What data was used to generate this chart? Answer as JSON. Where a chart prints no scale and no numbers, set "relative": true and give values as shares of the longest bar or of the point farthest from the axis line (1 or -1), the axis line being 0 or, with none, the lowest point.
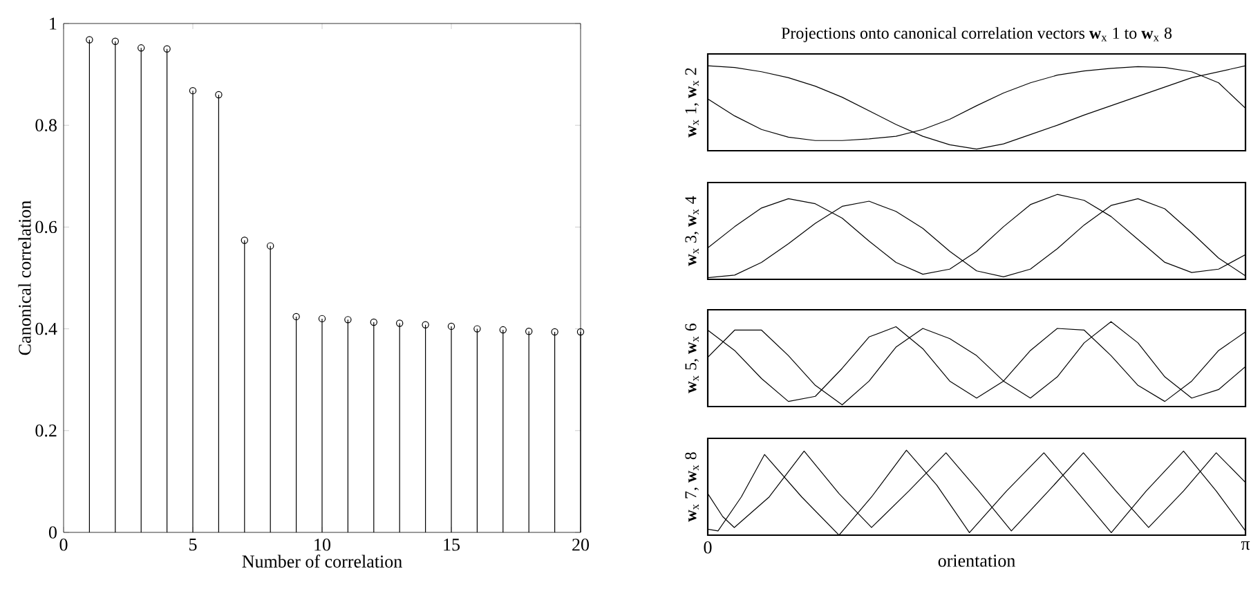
{
  "chart_data": [
    {
      "type": "lollipop",
      "xlabel": "Number of correlation",
      "ylabel": "Canonical correlation",
      "x": [
        1,
        2,
        3,
        4,
        5,
        6,
        7,
        8,
        9,
        10,
        11,
        12,
        13,
        14,
        15,
        16,
        17,
        18,
        19,
        20
      ],
      "marker": "circle",
      "xlim": [
        0,
        20
      ],
      "xticks": [
        0,
        5,
        10,
        15,
        20
      ],
      "ylim": [
        0,
        1
      ],
      "yticks": [
        0,
        0.2,
        0.4,
        0.6,
        0.8,
        1
      ],
      "series": [
        {
          "color": "#000000",
          "values": [
            0.968,
            0.965,
            0.952,
            0.95,
            0.868,
            0.86,
            0.574,
            0.563,
            0.424,
            0.42,
            0.418,
            0.413,
            0.411,
            0.408,
            0.405,
            0.4,
            0.398,
            0.395,
            0.394,
            0.394
          ]
        }
      ]
    },
    {
      "type": "line",
      "relative": true,
      "title": "Projections onto canonical correlation vectors **w**$_{x}$ 1 to **w**$_{x}$ 8",
      "ylabel": "**w**$_{x}$ 1, **w**$_{x}$ 2",
      "tick_labels": false,
      "categories": [
        null,
        null,
        null,
        null,
        null,
        null,
        null,
        null,
        null,
        null,
        null,
        null,
        null,
        null,
        null,
        null,
        null,
        null,
        null,
        null,
        null
      ],
      "series": [
        {
          "color": "#000000",
          "values": [
            1.0,
            0.98,
            0.93,
            0.86,
            0.76,
            0.63,
            0.47,
            0.31,
            0.17,
            0.07,
            0.02,
            0.08,
            0.19,
            0.3,
            0.42,
            0.53,
            0.64,
            0.75,
            0.86,
            0.93,
            1.0
          ]
        },
        {
          "color": "#000000",
          "values": [
            0.61,
            0.41,
            0.25,
            0.16,
            0.12,
            0.12,
            0.14,
            0.17,
            0.25,
            0.37,
            0.53,
            0.68,
            0.8,
            0.89,
            0.94,
            0.97,
            0.99,
            0.98,
            0.93,
            0.8,
            0.5
          ]
        }
      ]
    },
    {
      "type": "line",
      "relative": true,
      "ylabel": "**w**$_{x}$ 3, **w**$_{x}$ 4",
      "tick_labels": false,
      "categories": [
        null,
        null,
        null,
        null,
        null,
        null,
        null,
        null,
        null,
        null,
        null,
        null,
        null,
        null,
        null,
        null,
        null,
        null,
        null,
        null,
        null
      ],
      "series": [
        {
          "color": "#000000",
          "values": [
            0.37,
            0.62,
            0.84,
            0.95,
            0.89,
            0.72,
            0.45,
            0.2,
            0.06,
            0.12,
            0.33,
            0.62,
            0.88,
            1.0,
            0.93,
            0.74,
            0.47,
            0.2,
            0.08,
            0.12,
            0.29
          ]
        },
        {
          "color": "#000000",
          "values": [
            0.02,
            0.05,
            0.2,
            0.42,
            0.66,
            0.86,
            0.92,
            0.8,
            0.6,
            0.33,
            0.1,
            0.03,
            0.12,
            0.36,
            0.64,
            0.87,
            0.95,
            0.83,
            0.55,
            0.25,
            0.04
          ]
        }
      ]
    },
    {
      "type": "line",
      "relative": true,
      "ylabel": "**w**$_{x}$ 5, **w**$_{x}$ 6",
      "tick_labels": false,
      "categories": [
        null,
        null,
        null,
        null,
        null,
        null,
        null,
        null,
        null,
        null,
        null,
        null,
        null,
        null,
        null,
        null,
        null,
        null,
        null,
        null,
        null
      ],
      "series": [
        {
          "color": "#000000",
          "values": [
            0.9,
            0.66,
            0.33,
            0.06,
            0.12,
            0.45,
            0.82,
            0.94,
            0.68,
            0.3,
            0.1,
            0.3,
            0.66,
            0.92,
            0.9,
            0.6,
            0.25,
            0.06,
            0.3,
            0.66,
            0.88
          ]
        },
        {
          "color": "#000000",
          "values": [
            0.58,
            0.9,
            0.9,
            0.6,
            0.25,
            0.02,
            0.3,
            0.7,
            0.92,
            0.8,
            0.6,
            0.3,
            0.1,
            0.35,
            0.75,
            1.0,
            0.75,
            0.35,
            0.1,
            0.2,
            0.47
          ]
        }
      ]
    },
    {
      "type": "line",
      "relative": true,
      "ylabel": "**w**$_{x}$ 7, **w**$_{x}$ 8",
      "xlabel": "orientation",
      "xlim": [
        0,
        3.142
      ],
      "xticks": [
        {
          "value": 0,
          "label": "0"
        },
        {
          "value": 3.142,
          "label": "π"
        }
      ],
      "tick_labels": "x",
      "series": [
        {
          "color": "#000000",
          "x": [
            0,
            0.087,
            0.155,
            0.359,
            0.563,
            0.767,
            0.957,
            1.175,
            1.392,
            1.583,
            1.774,
            1.991,
            2.195,
            2.386,
            2.576,
            2.78,
            2.971,
            3.142
          ],
          "values": [
            0.49,
            0.22,
            0.09,
            0.45,
            0.99,
            0.49,
            0.09,
            0.52,
            0.97,
            0.52,
            0.05,
            0.52,
            0.97,
            0.52,
            0.09,
            0.52,
            0.97,
            0.62
          ]
        },
        {
          "color": "#000000",
          "x": [
            0,
            0.06,
            0.196,
            0.332,
            0.549,
            0.767,
            0.957,
            1.161,
            1.338,
            1.529,
            1.746,
            1.964,
            2.154,
            2.358,
            2.562,
            2.78,
            2.971,
            3.142
          ],
          "values": [
            0.07,
            0.05,
            0.45,
            0.95,
            0.45,
            0,
            0.45,
            1.0,
            0.59,
            0.03,
            0.52,
            0.97,
            0.52,
            0.03,
            0.52,
            0.99,
            0.52,
            0.05
          ]
        }
      ]
    }
  ]
}
